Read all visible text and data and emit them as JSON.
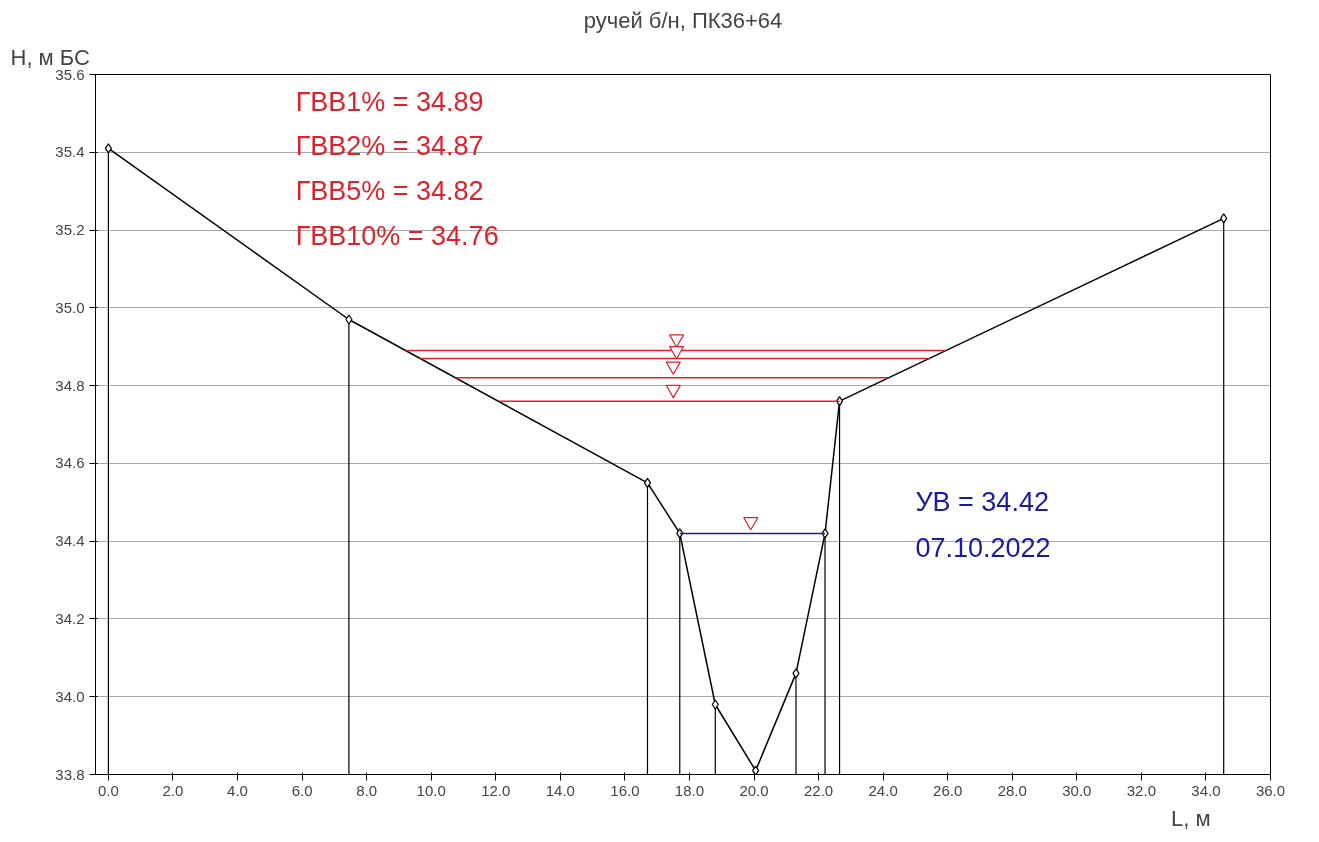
{
  "chart_data": {
    "type": "line",
    "title": "ручей б/н, ПК36+64",
    "xlabel": "L, м",
    "ylabel": "Н, м БС",
    "xlim": [
      -0.4,
      36.0
    ],
    "ylim": [
      33.8,
      35.6
    ],
    "xticks": [
      {
        "value": 0,
        "label": "0.0"
      },
      {
        "value": 2,
        "label": "2.0"
      },
      {
        "value": 4,
        "label": "4.0"
      },
      {
        "value": 6,
        "label": "6.0"
      },
      {
        "value": 8,
        "label": "8.0"
      },
      {
        "value": 10,
        "label": "10.0"
      },
      {
        "value": 12,
        "label": "12.0"
      },
      {
        "value": 14,
        "label": "14.0"
      },
      {
        "value": 16,
        "label": "16.0"
      },
      {
        "value": 18,
        "label": "18.0"
      },
      {
        "value": 20,
        "label": "20.0"
      },
      {
        "value": 22,
        "label": "22.0"
      },
      {
        "value": 24,
        "label": "24.0"
      },
      {
        "value": 26,
        "label": "26.0"
      },
      {
        "value": 28,
        "label": "28.0"
      },
      {
        "value": 30,
        "label": "30.0"
      },
      {
        "value": 32,
        "label": "32.0"
      },
      {
        "value": 34,
        "label": "34.0"
      },
      {
        "value": 36,
        "label": "36.0"
      }
    ],
    "yticks": [
      {
        "value": 33.8,
        "label": "33.8"
      },
      {
        "value": 34.0,
        "label": "34.0"
      },
      {
        "value": 34.2,
        "label": "34.2"
      },
      {
        "value": 34.4,
        "label": "34.4"
      },
      {
        "value": 34.6,
        "label": "34.6"
      },
      {
        "value": 34.8,
        "label": "34.8"
      },
      {
        "value": 35.0,
        "label": "35.0"
      },
      {
        "value": 35.2,
        "label": "35.2"
      },
      {
        "value": 35.4,
        "label": "35.4"
      },
      {
        "value": 35.6,
        "label": "35.6"
      }
    ],
    "grid": "y",
    "series": [
      {
        "color": "#000000",
        "marker": "none",
        "x": [
          0.0,
          7.45,
          16.7,
          17.7,
          18.8,
          20.05,
          21.3,
          22.2,
          22.65,
          34.55
        ],
        "values": [
          35.41,
          34.97,
          34.55,
          34.42,
          33.98,
          33.81,
          34.06,
          34.42,
          34.76,
          35.23
        ]
      },
      {
        "type": "lollipop",
        "color": "#000000",
        "marker": "diamond",
        "x": [
          0.0,
          7.45,
          16.7,
          17.7,
          18.8,
          20.05,
          21.3,
          22.2,
          22.65,
          34.55
        ],
        "values": [
          35.41,
          34.97,
          34.55,
          34.42,
          33.98,
          33.81,
          34.06,
          34.42,
          34.76,
          35.23
        ]
      },
      {
        "type": "line",
        "color": "#e0202a",
        "marker": "none",
        "x": [
          9.2,
          25.95
        ],
        "values": [
          34.89,
          34.89
        ]
      },
      {
        "type": "line",
        "color": "#e0202a",
        "marker": "none",
        "x": [
          9.65,
          25.45
        ],
        "values": [
          34.87,
          34.87
        ]
      },
      {
        "type": "line",
        "color": "#e0202a",
        "marker": "none",
        "x": [
          10.75,
          24.15
        ],
        "values": [
          34.82,
          34.82
        ]
      },
      {
        "type": "line",
        "color": "#e0202a",
        "marker": "none",
        "x": [
          12.1,
          22.65
        ],
        "values": [
          34.76,
          34.76
        ]
      },
      {
        "type": "line",
        "color": "#1a1aa0",
        "marker": "none",
        "x": [
          17.7,
          22.2
        ],
        "values": [
          34.42,
          34.42
        ]
      },
      {
        "type": "scatter",
        "color": "#e0202a",
        "marker": "triangle",
        "x": [
          17.6,
          17.6,
          17.5,
          17.5,
          19.9
        ],
        "values": [
          34.92,
          34.89,
          34.85,
          34.79,
          34.45
        ]
      }
    ],
    "annotations": [
      "ГВВ1%   = 34.89",
      "ГВВ2%   = 34.87",
      "ГВВ5%   = 34.82",
      "ГВВ10% = 34.76",
      "УВ = 34.42",
      "07.10.2022"
    ]
  }
}
